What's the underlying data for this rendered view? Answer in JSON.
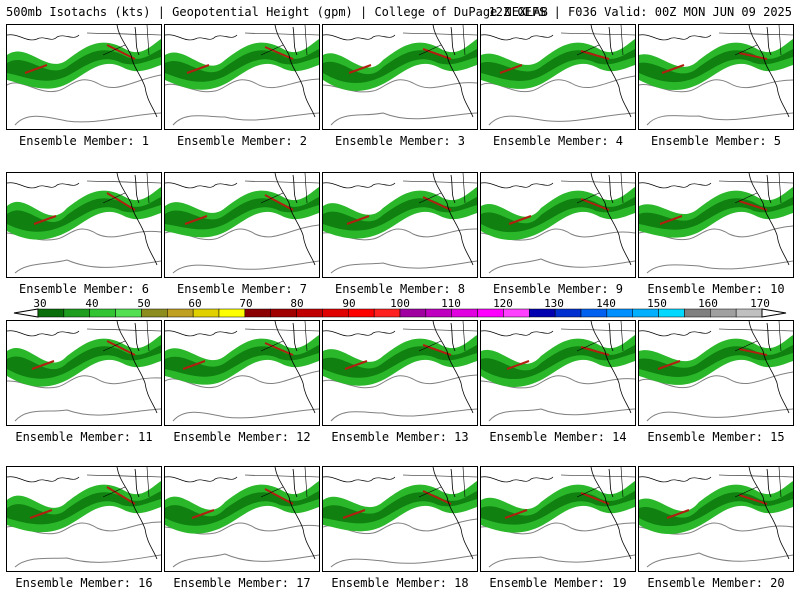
{
  "header": {
    "left": "500mb Isotachs (kts) | Geopotential Height (gpm) | College of DuPage NEXLAB",
    "right": "12Z GEFS | F036 Valid: 00Z MON JUN 09 2025"
  },
  "members": [
    {
      "label": "Ensemble Member: 1"
    },
    {
      "label": "Ensemble Member: 2"
    },
    {
      "label": "Ensemble Member: 3"
    },
    {
      "label": "Ensemble Member: 4"
    },
    {
      "label": "Ensemble Member: 5"
    },
    {
      "label": "Ensemble Member: 6"
    },
    {
      "label": "Ensemble Member: 7"
    },
    {
      "label": "Ensemble Member: 8"
    },
    {
      "label": "Ensemble Member: 9"
    },
    {
      "label": "Ensemble Member: 10"
    },
    {
      "label": "Ensemble Member: 11"
    },
    {
      "label": "Ensemble Member: 12"
    },
    {
      "label": "Ensemble Member: 13"
    },
    {
      "label": "Ensemble Member: 14"
    },
    {
      "label": "Ensemble Member: 15"
    },
    {
      "label": "Ensemble Member: 16"
    },
    {
      "label": "Ensemble Member: 17"
    },
    {
      "label": "Ensemble Member: 18"
    },
    {
      "label": "Ensemble Member: 19"
    },
    {
      "label": "Ensemble Member: 20"
    }
  ],
  "colorbar": {
    "labels": [
      "30",
      "40",
      "50",
      "60",
      "70",
      "80",
      "90",
      "100",
      "110",
      "120",
      "130",
      "140",
      "150",
      "160",
      "170"
    ],
    "colors": [
      "#0a6e0a",
      "#1f9d1f",
      "#33c433",
      "#52e052",
      "#8c8c1f",
      "#c0a020",
      "#e0d000",
      "#ffff00",
      "#8b0000",
      "#a00000",
      "#c00000",
      "#e00000",
      "#ff0000",
      "#ff2020",
      "#a000a0",
      "#c000c0",
      "#e000e0",
      "#ff00ff",
      "#ff40ff",
      "#0000b0",
      "#0030d0",
      "#0060f0",
      "#0090ff",
      "#00b0ff",
      "#00d8ff",
      "#808080",
      "#a0a0a0",
      "#c0c0c0"
    ]
  },
  "colors": {
    "jet_low": "#2ab82a",
    "jet_mid": "#108010",
    "jet_core": "#b02010",
    "height_contour": "#808080"
  }
}
